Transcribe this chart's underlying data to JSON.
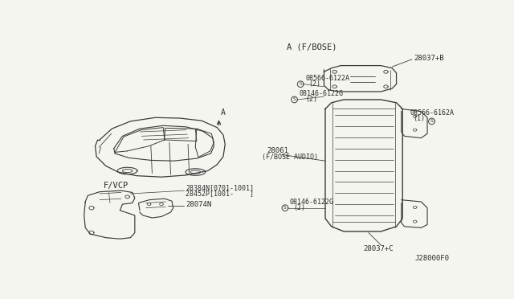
{
  "bg_color": "#f5f5f0",
  "line_color": "#3a3a3a",
  "text_color": "#2a2a2a",
  "diagram_id": "J28000F0",
  "labels": {
    "section_a": "A (F/BOSE)",
    "section_fvcp": "F/VCP",
    "part_28037b": "28037+B",
    "part_28037c": "28037+C",
    "part_28061": "28061",
    "part_28061_sub": "(F/BOSE AUDIO)",
    "part_28074n": "28074N",
    "part_28384n": "28384N[0701-1001]",
    "part_28452p": "28452P[1001-    ]",
    "screw_08566_6122a": "08566-6122A",
    "screw_08566_6122a_qty": "(2)",
    "screw_08146_6122g_1": "08146-6122G",
    "screw_08146_6122g_1_qty": "(2)",
    "screw_08566_6162a": "08566-6162A",
    "screw_08566_6162a_qty": "(1)",
    "screw_08146_6122g_2": "08146-6122G",
    "screw_08146_6122g_2_qty": "(2)",
    "arrow_a": "A"
  }
}
